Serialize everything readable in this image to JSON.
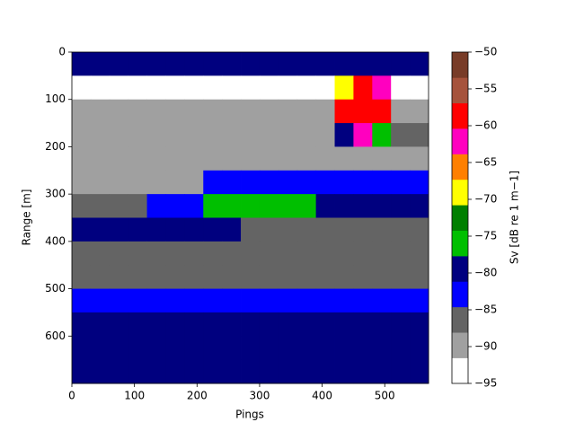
{
  "chart_data": {
    "type": "heatmap",
    "x_label": "Pings",
    "y_label": "Range [m]",
    "colorbar_label": "Sv [dB re 1 m−1]",
    "xbins": [
      0,
      30,
      60,
      90,
      120,
      150,
      180,
      210,
      240,
      270,
      300,
      330,
      360,
      390,
      420,
      450,
      480,
      510,
      540,
      570
    ],
    "ybins": [
      0,
      50,
      100,
      150,
      200,
      250,
      300,
      350,
      400,
      450,
      500,
      550,
      600,
      650,
      700
    ],
    "z": [
      [
        -79,
        -79,
        -79,
        -79,
        -79,
        -79,
        -79,
        -79,
        -79,
        -79,
        -79,
        -79,
        -79,
        -79,
        -79,
        -79,
        -79,
        -79,
        -79
      ],
      [
        -92,
        -92,
        -92,
        -92,
        -92,
        -92,
        -92,
        -92,
        -92,
        -92,
        -92,
        -92,
        -92,
        -92,
        -70,
        -58,
        -62,
        -92,
        -92
      ],
      [
        -91,
        -91,
        -91,
        -91,
        -91,
        -91,
        -91,
        -91,
        -91,
        -91,
        -91,
        -91,
        -91,
        -91,
        -60,
        -57,
        -58,
        -91,
        -91
      ],
      [
        -91,
        -91,
        -91,
        -91,
        -91,
        -91,
        -91,
        -91,
        -91,
        -91,
        -91,
        -91,
        -91,
        -91,
        -80,
        -62,
        -75,
        -85,
        -85
      ],
      [
        -91,
        -91,
        -91,
        -91,
        -91,
        -89,
        -89,
        -89,
        -89,
        -89,
        -89,
        -89,
        -89,
        -91,
        -91,
        -91,
        -91,
        -91,
        -91
      ],
      [
        -90,
        -90,
        -90,
        -90,
        -90,
        -90,
        -90,
        -84,
        -84,
        -84,
        -84,
        -84,
        -82,
        -82,
        -82,
        -82,
        -82,
        -82,
        -82
      ],
      [
        -87,
        -87,
        -87,
        -87,
        -84,
        -84,
        -84,
        -77,
        -77,
        -77,
        -77,
        -77,
        -77,
        -80,
        -80,
        -80,
        -80,
        -80,
        -80
      ],
      [
        -78,
        -78,
        -78,
        -78,
        -78,
        -80,
        -80,
        -80,
        -80,
        -87,
        -87,
        -87,
        -87,
        -87,
        -87,
        -87,
        -87,
        -87,
        -87
      ],
      [
        -87,
        -87,
        -87,
        -87,
        -87,
        -87,
        -87,
        -87,
        -87,
        -87,
        -87,
        -87,
        -87,
        -87,
        -87,
        -87,
        -87,
        -87,
        -87
      ],
      [
        -86,
        -86,
        -86,
        -86,
        -86,
        -86,
        -86,
        -86,
        -86,
        -86,
        -86,
        -86,
        -86,
        -86,
        -86,
        -86,
        -86,
        -86,
        -86
      ],
      [
        -84,
        -84,
        -84,
        -84,
        -84,
        -84,
        -84,
        -84,
        -84,
        -84,
        -84,
        -84,
        -84,
        -84,
        -84,
        -84,
        -84,
        -84,
        -84
      ],
      [
        -81,
        -81,
        -81,
        -81,
        -81,
        -81,
        -81,
        -81,
        -81,
        -81,
        -81,
        -81,
        -81,
        -81,
        -81,
        -81,
        -81,
        -81,
        -81
      ],
      [
        -80,
        -80,
        -80,
        -80,
        -80,
        -80,
        -80,
        -80,
        -80,
        -80,
        -80,
        -80,
        -80,
        -80,
        -80,
        -80,
        -80,
        -80,
        -80
      ],
      [
        -79,
        -79,
        -79,
        -79,
        -79,
        -79,
        -79,
        -79,
        -79,
        -79,
        -79,
        -79,
        -79,
        -79,
        -79,
        -79,
        -79,
        -79,
        -79
      ]
    ],
    "xlim": [
      0,
      570
    ],
    "ylim": [
      700,
      0
    ],
    "xticks": [
      0,
      100,
      200,
      300,
      400,
      500
    ],
    "yticks": [
      0,
      100,
      200,
      300,
      400,
      500,
      600
    ],
    "clim": [
      -95,
      -50
    ],
    "cticks": [
      {
        "value": -95,
        "label": "−95"
      },
      {
        "value": -90,
        "label": "−90"
      },
      {
        "value": -85,
        "label": "−85"
      },
      {
        "value": -80,
        "label": "−80"
      },
      {
        "value": -75,
        "label": "−75"
      },
      {
        "value": -70,
        "label": "−70"
      },
      {
        "value": -65,
        "label": "−65"
      },
      {
        "value": -60,
        "label": "−60"
      },
      {
        "value": -55,
        "label": "−55"
      },
      {
        "value": -50,
        "label": "−50"
      }
    ],
    "colors": [
      "#ffffff",
      "#a0a0a0",
      "#646464",
      "#0000ff",
      "#00007f",
      "#00bf00",
      "#007f00",
      "#ffff00",
      "#ff7f00",
      "#ff00bf",
      "#ff0000",
      "#a6533c",
      "#783c28"
    ]
  }
}
